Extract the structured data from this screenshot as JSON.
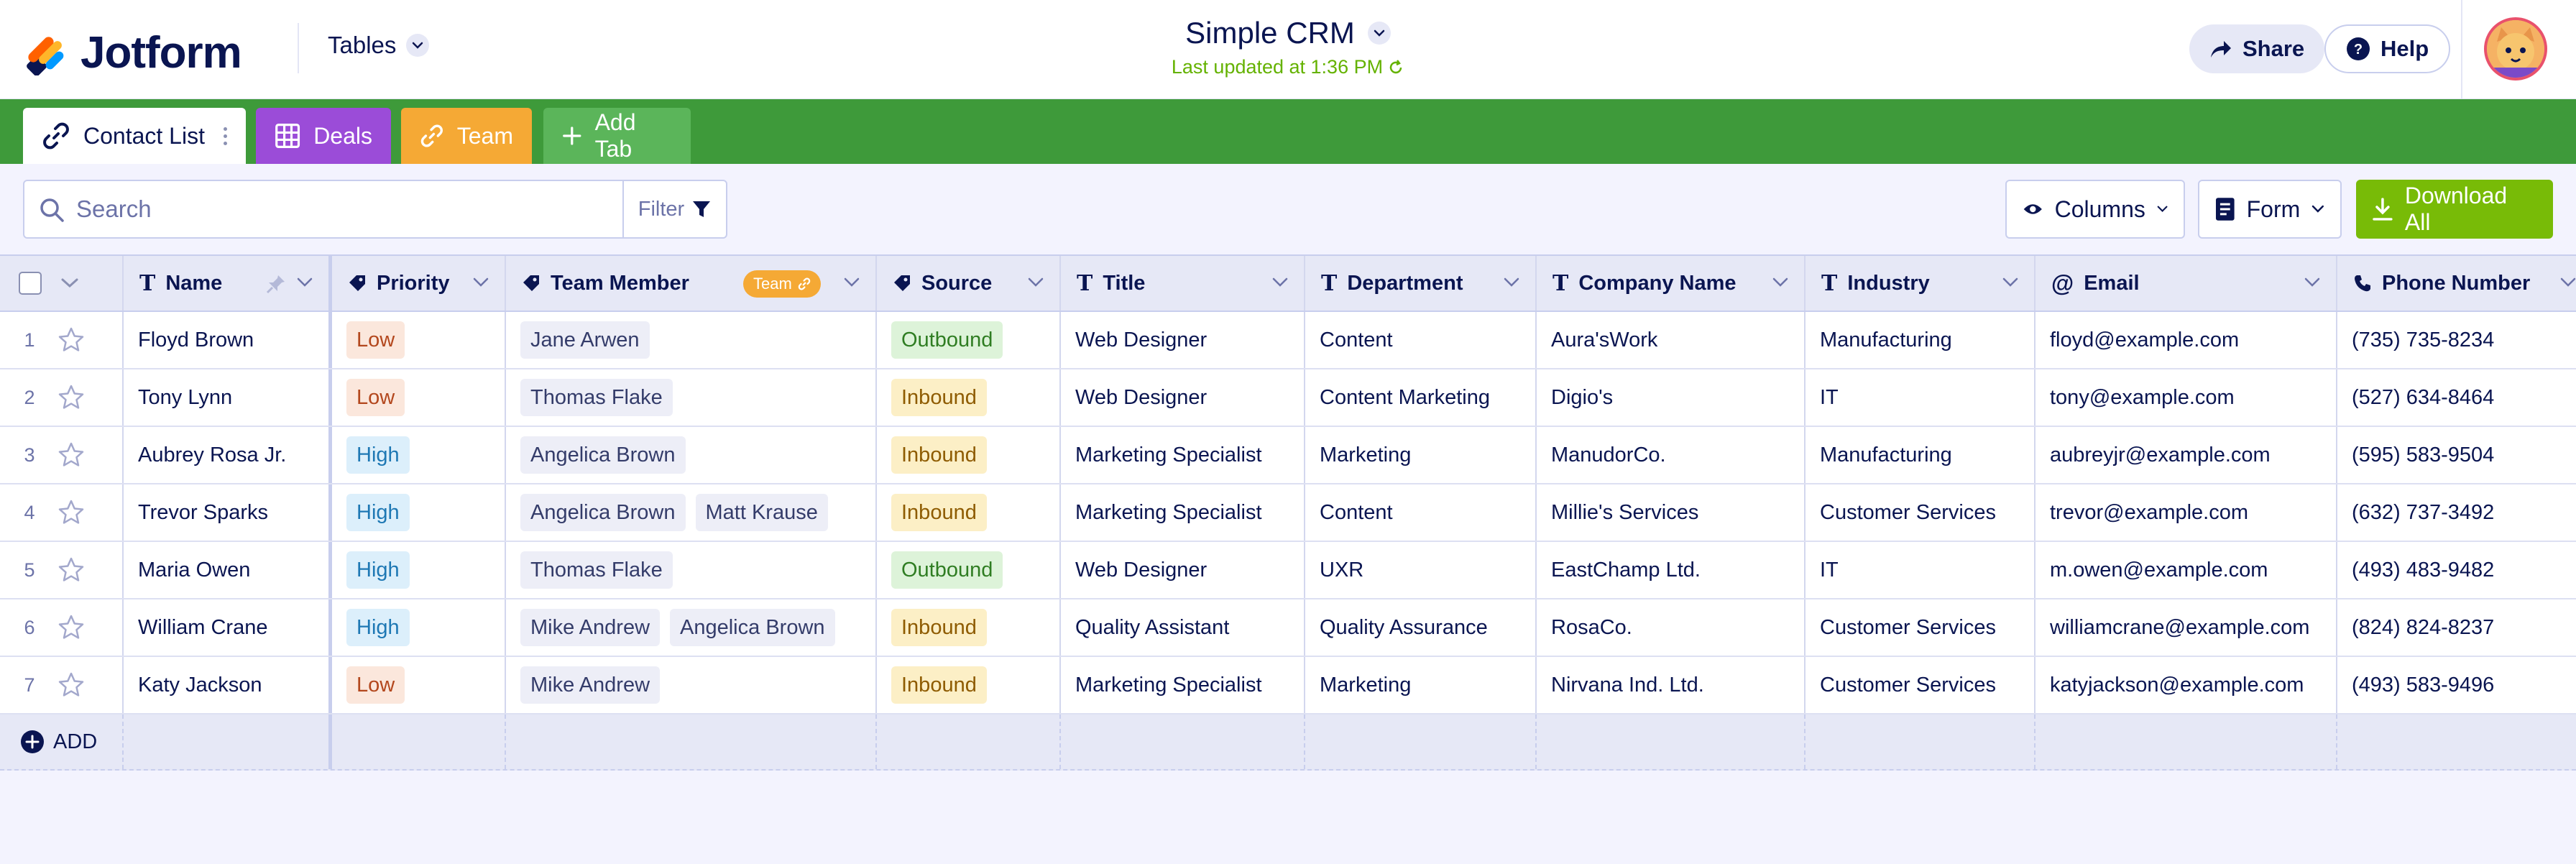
{
  "header": {
    "logo_text": "Jotform",
    "tables_label": "Tables",
    "title": "Simple CRM",
    "last_updated": "Last updated at 1:36 PM",
    "share_label": "Share",
    "help_label": "Help"
  },
  "tabs": [
    {
      "label": "Contact List",
      "icon": "link-icon",
      "color": "#FFFFFF",
      "active": true
    },
    {
      "label": "Deals",
      "icon": "grid-icon",
      "color": "#9B4CD8",
      "active": false
    },
    {
      "label": "Team",
      "icon": "link-icon",
      "color": "#F5A935",
      "active": false
    },
    {
      "label": "Add Tab",
      "icon": "plus-icon",
      "color": "#5BB55A",
      "active": false
    }
  ],
  "toolbar": {
    "search_placeholder": "Search",
    "filter_label": "Filter",
    "columns_label": "Columns",
    "form_label": "Form",
    "download_label": "Download All"
  },
  "table": {
    "columns": [
      {
        "label": "Name",
        "icon": "text-type-icon"
      },
      {
        "label": "Priority",
        "icon": "tag-icon"
      },
      {
        "label": "Team Member",
        "icon": "tag-icon",
        "badge": "Team"
      },
      {
        "label": "Source",
        "icon": "tag-icon"
      },
      {
        "label": "Title",
        "icon": "text-type-icon"
      },
      {
        "label": "Department",
        "icon": "text-type-icon"
      },
      {
        "label": "Company Name",
        "icon": "text-type-icon"
      },
      {
        "label": "Industry",
        "icon": "text-type-icon"
      },
      {
        "label": "Email",
        "icon": "at-icon"
      },
      {
        "label": "Phone Number",
        "icon": "phone-icon"
      }
    ],
    "rows": [
      {
        "num": "1",
        "name": "Floyd Brown",
        "priority": "Low",
        "members": [
          "Jane Arwen"
        ],
        "source": "Outbound",
        "title": "Web Designer",
        "department": "Content",
        "company": "Aura'sWork",
        "industry": "Manufacturing",
        "email": "floyd@example.com",
        "phone": "(735) 735-8234"
      },
      {
        "num": "2",
        "name": "Tony Lynn",
        "priority": "Low",
        "members": [
          "Thomas Flake"
        ],
        "source": "Inbound",
        "title": "Web Designer",
        "department": "Content Marketing",
        "company": "Digio's",
        "industry": "IT",
        "email": "tony@example.com",
        "phone": "(527) 634-8464"
      },
      {
        "num": "3",
        "name": "Aubrey Rosa Jr.",
        "priority": "High",
        "members": [
          "Angelica Brown"
        ],
        "source": "Inbound",
        "title": "Marketing Specialist",
        "department": "Marketing",
        "company": "ManudorCo.",
        "industry": "Manufacturing",
        "email": "aubreyjr@example.com",
        "phone": "(595) 583-9504"
      },
      {
        "num": "4",
        "name": "Trevor Sparks",
        "priority": "High",
        "members": [
          "Angelica Brown",
          "Matt Krause"
        ],
        "source": "Inbound",
        "title": "Marketing Specialist",
        "department": "Content",
        "company": "Millie's Services",
        "industry": "Customer Services",
        "email": "trevor@example.com",
        "phone": "(632) 737-3492"
      },
      {
        "num": "5",
        "name": "Maria Owen",
        "priority": "High",
        "members": [
          "Thomas Flake"
        ],
        "source": "Outbound",
        "title": "Web Designer",
        "department": "UXR",
        "company": "EastChamp Ltd.",
        "industry": "IT",
        "email": "m.owen@example.com",
        "phone": "(493) 483-9482"
      },
      {
        "num": "6",
        "name": "William Crane",
        "priority": "High",
        "members": [
          "Mike Andrew",
          "Angelica Brown"
        ],
        "source": "Inbound",
        "title": "Quality Assistant",
        "department": "Quality Assurance",
        "company": "RosaCo.",
        "industry": "Customer Services",
        "email": "williamcrane@example.com",
        "phone": "(824) 824-8237"
      },
      {
        "num": "7",
        "name": "Katy Jackson",
        "priority": "Low",
        "members": [
          "Mike Andrew"
        ],
        "source": "Inbound",
        "title": "Marketing Specialist",
        "department": "Marketing",
        "company": "Nirvana Ind. Ltd.",
        "industry": "Customer Services",
        "email": "katyjackson@example.com",
        "phone": "(493) 583-9496"
      }
    ],
    "add_label": "ADD"
  },
  "colors": {
    "brand_green": "#3E9A3A",
    "download_green": "#78BB07",
    "navy": "#0A1551"
  }
}
